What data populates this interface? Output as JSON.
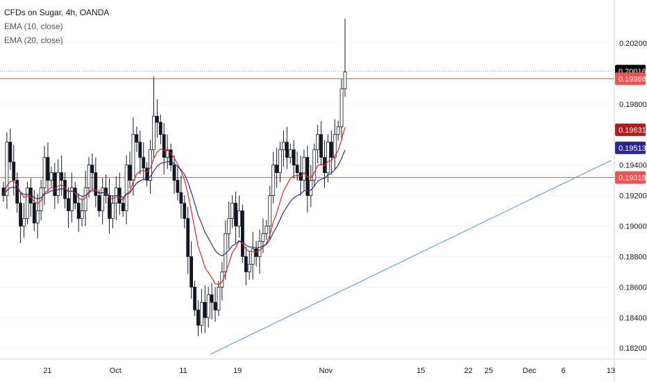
{
  "header": {
    "title": "CFDs on Sugar, 4h, OANDA",
    "indicators": [
      "EMA (10, close)",
      "EMA (20, close)"
    ]
  },
  "colors": {
    "up": "#ffffff",
    "down": "#131722",
    "wick": "#131722",
    "ema10": "#e5262a",
    "ema20": "#2a2a8c",
    "hline": "#ef5350",
    "trendline": "#4a90e2",
    "grid": "#f0f3fa",
    "axis": "#d1d4dc"
  },
  "chart_data": {
    "type": "candlestick",
    "title": "CFDs on Sugar, 4h, OANDA",
    "y_ticks": [
      "0.20200",
      "0.19800",
      "0.19400",
      "0.19200",
      "0.19000",
      "0.18800",
      "0.18600",
      "0.18400",
      "0.18200"
    ],
    "y_tick_values": [
      0.202,
      0.198,
      0.194,
      0.192,
      0.19,
      0.188,
      0.186,
      0.184,
      0.182
    ],
    "ylim": [
      0.1816,
      0.204
    ],
    "x_ticks": [
      "21",
      "Oct",
      "11",
      "19",
      "Nov",
      "15",
      "22",
      "25",
      "Dec",
      "6",
      "13"
    ],
    "x_tick_dates": [
      "2021-09-21",
      "2021-10-01",
      "2021-10-11",
      "2021-10-19",
      "2021-11-01",
      "2021-11-15",
      "2021-11-22",
      "2021-11-25",
      "2021-12-01",
      "2021-12-06",
      "2021-12-13"
    ],
    "price_labels": [
      {
        "text": "0.20016",
        "value": 0.20016,
        "color": "#000000",
        "role": "last"
      },
      {
        "text": "0.19966",
        "value": 0.19966,
        "color": "#ef5350",
        "role": "hline"
      },
      {
        "text": "0.19631",
        "value": 0.19631,
        "color": "#b71c1c",
        "role": "ema10"
      },
      {
        "text": "0.19513",
        "value": 0.19513,
        "color": "#2a2a8c",
        "role": "ema20"
      },
      {
        "text": "0.19318",
        "value": 0.19318,
        "color": "#ef5350",
        "role": "hline"
      }
    ],
    "hlines": [
      0.19966,
      0.19318
    ],
    "trendline": {
      "start": [
        "2021-10-15",
        0.1816
      ],
      "end": [
        "2021-12-13",
        0.1943
      ]
    },
    "closes": [
      0.192,
      0.1955,
      0.1942,
      0.193,
      0.1915,
      0.19,
      0.1905,
      0.1925,
      0.1915,
      0.1902,
      0.191,
      0.1925,
      0.1945,
      0.193,
      0.1935,
      0.192,
      0.1935,
      0.193,
      0.1918,
      0.191,
      0.1925,
      0.1915,
      0.1905,
      0.191,
      0.1925,
      0.194,
      0.1935,
      0.192,
      0.191,
      0.1925,
      0.192,
      0.1905,
      0.1915,
      0.1925,
      0.1915,
      0.191,
      0.194,
      0.193,
      0.196,
      0.1955,
      0.1945,
      0.1938,
      0.193,
      0.195,
      0.1972,
      0.1968,
      0.196,
      0.1945,
      0.195,
      0.194,
      0.193,
      0.1922,
      0.1915,
      0.1905,
      0.188,
      0.186,
      0.1845,
      0.1835,
      0.185,
      0.184,
      0.1855,
      0.185,
      0.1845,
      0.186,
      0.187,
      0.1895,
      0.1905,
      0.1915,
      0.19,
      0.191,
      0.188,
      0.187,
      0.1875,
      0.1885,
      0.188,
      0.189,
      0.1895,
      0.19,
      0.192,
      0.194,
      0.1935,
      0.195,
      0.1955,
      0.1945,
      0.195,
      0.194,
      0.1935,
      0.193,
      0.1945,
      0.192,
      0.193,
      0.195,
      0.196,
      0.1945,
      0.1935,
      0.1955,
      0.1945,
      0.196,
      0.1965,
      0.199,
      0.2001
    ],
    "ema10_end": 0.19631,
    "ema20_end": 0.19513
  }
}
